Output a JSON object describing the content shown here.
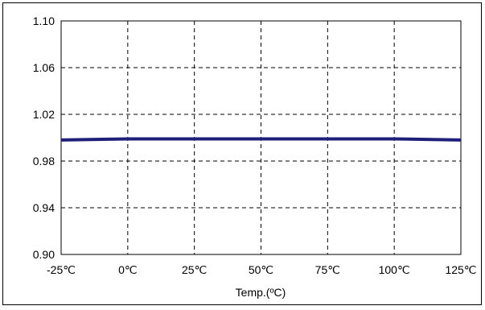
{
  "chart_data": {
    "type": "line",
    "title": "",
    "xlabel": "Temp.(ºC)",
    "ylabel": "",
    "categories": [
      "-25℃",
      "0℃",
      "25℃",
      "50℃",
      "75℃",
      "100℃",
      "125℃"
    ],
    "x": [
      -25,
      0,
      25,
      50,
      75,
      100,
      125
    ],
    "y_ticks": [
      "0.90",
      "0.94",
      "0.98",
      "1.02",
      "1.06",
      "1.10"
    ],
    "ylim": [
      0.9,
      1.1
    ],
    "xlim": [
      -25,
      125
    ],
    "grid": true,
    "legend": "none",
    "series": [
      {
        "values": [
          0.998,
          0.999,
          0.999,
          0.999,
          0.999,
          0.999,
          0.998
        ],
        "color": "#1f1f7a"
      }
    ]
  },
  "colors": {
    "line": "#1f1f7a",
    "grid": "#000000",
    "frame": "#000000"
  }
}
